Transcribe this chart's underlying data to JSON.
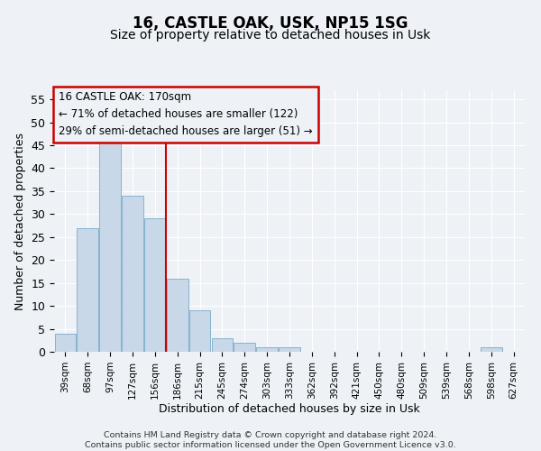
{
  "title": "16, CASTLE OAK, USK, NP15 1SG",
  "subtitle": "Size of property relative to detached houses in Usk",
  "xlabel": "Distribution of detached houses by size in Usk",
  "ylabel": "Number of detached properties",
  "categories": [
    "39sqm",
    "68sqm",
    "97sqm",
    "127sqm",
    "156sqm",
    "186sqm",
    "215sqm",
    "245sqm",
    "274sqm",
    "303sqm",
    "333sqm",
    "362sqm",
    "392sqm",
    "421sqm",
    "450sqm",
    "480sqm",
    "509sqm",
    "539sqm",
    "568sqm",
    "598sqm",
    "627sqm"
  ],
  "values": [
    4,
    27,
    46,
    34,
    29,
    16,
    9,
    3,
    2,
    1,
    1,
    0,
    0,
    0,
    0,
    0,
    0,
    0,
    0,
    1,
    0
  ],
  "bar_color": "#c8d8e8",
  "bar_edge_color": "#7aaac8",
  "vline_x": 4,
  "vline_color": "#cc0000",
  "ylim": [
    0,
    57
  ],
  "yticks": [
    0,
    5,
    10,
    15,
    20,
    25,
    30,
    35,
    40,
    45,
    50,
    55
  ],
  "annotation_lines": [
    "16 CASTLE OAK: 170sqm",
    "← 71% of detached houses are smaller (122)",
    "29% of semi-detached houses are larger (51) →"
  ],
  "annotation_box_color": "#cc0000",
  "footer_lines": [
    "Contains HM Land Registry data © Crown copyright and database right 2024.",
    "Contains public sector information licensed under the Open Government Licence v3.0."
  ],
  "bg_color": "#eef2f7",
  "grid_color": "#ffffff",
  "title_fontsize": 12,
  "subtitle_fontsize": 10,
  "bar_width": 0.95
}
